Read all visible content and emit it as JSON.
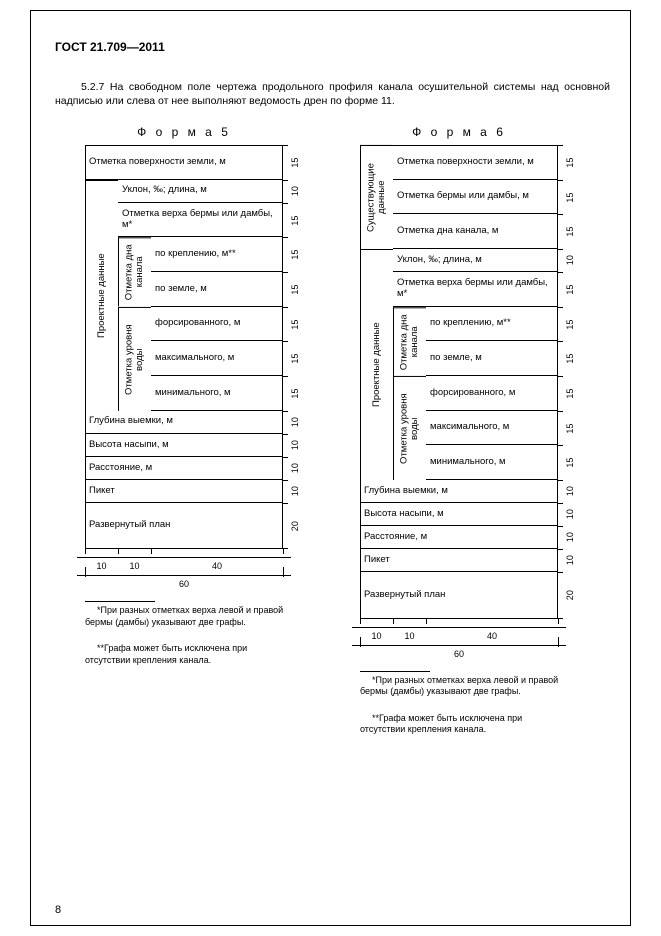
{
  "header": "ГОСТ 21.709—2011",
  "paragraph": "5.2.7 На свободном поле чертежа продольного профиля канала осушительной системы над основной надписью или слева от нее выполняют ведомость дрен по форме 11.",
  "page_number": "8",
  "form5": {
    "title": "Ф о р м а 5",
    "rows": [
      {
        "label": "Отметка поверхности земли, м",
        "h": 15,
        "cols": "full"
      },
      {
        "label": "Уклон, ‰; длина, м",
        "h": 10,
        "cols": "group1"
      },
      {
        "label": "Отметка верха бермы или дамбы, м*",
        "h": 15,
        "cols": "group1"
      },
      {
        "label": "по креплению, м**",
        "h": 15,
        "cols": "group2"
      },
      {
        "label": "по земле, м",
        "h": 15,
        "cols": "group2"
      },
      {
        "label": "форсированного, м",
        "h": 15,
        "cols": "group3"
      },
      {
        "label": "максимального, м",
        "h": 15,
        "cols": "group3"
      },
      {
        "label": "минимального, м",
        "h": 15,
        "cols": "group3"
      },
      {
        "label": "Глубина выемки, м",
        "h": 10,
        "cols": "full"
      },
      {
        "label": "Высота насыпи, м",
        "h": 10,
        "cols": "full"
      },
      {
        "label": "Расстояние, м",
        "h": 10,
        "cols": "full"
      },
      {
        "label": "Пикет",
        "h": 10,
        "cols": "full"
      },
      {
        "label": "Развернутый план",
        "h": 20,
        "cols": "full"
      }
    ],
    "group_outer": "Проектные данные",
    "group2": "Отметка дна канала",
    "group3": "Отметка уровня воды",
    "bottom_dims": {
      "a": "10",
      "b": "10",
      "c": "40",
      "total": "60"
    },
    "footnote1": "*При разных отметках верха левой и правой бермы (дамбы) указывают две графы.",
    "footnote2": "**Графа может быть исключена при отсутствии крепления канала."
  },
  "form6": {
    "title": "Ф о р м а 6",
    "rows": [
      {
        "label": "Отметка поверхности земли, м",
        "h": 15,
        "cols": "groupE"
      },
      {
        "label": "Отметка бермы или дамбы, м",
        "h": 15,
        "cols": "groupE"
      },
      {
        "label": "Отметка дна канала, м",
        "h": 15,
        "cols": "groupE"
      },
      {
        "label": "Уклон, ‰; длина, м",
        "h": 10,
        "cols": "group1"
      },
      {
        "label": "Отметка верха бермы или дамбы, м*",
        "h": 15,
        "cols": "group1"
      },
      {
        "label": "по креплению, м**",
        "h": 15,
        "cols": "group2"
      },
      {
        "label": "по земле, м",
        "h": 15,
        "cols": "group2"
      },
      {
        "label": "форсированного, м",
        "h": 15,
        "cols": "group3"
      },
      {
        "label": "максимального, м",
        "h": 15,
        "cols": "group3"
      },
      {
        "label": "минимального, м",
        "h": 15,
        "cols": "group3"
      },
      {
        "label": "Глубина выемки, м",
        "h": 10,
        "cols": "full"
      },
      {
        "label": "Высота насыпи, м",
        "h": 10,
        "cols": "full"
      },
      {
        "label": "Расстояние, м",
        "h": 10,
        "cols": "full"
      },
      {
        "label": "Пикет",
        "h": 10,
        "cols": "full"
      },
      {
        "label": "Развернутый план",
        "h": 20,
        "cols": "full"
      }
    ],
    "groupE": "Существующие данные",
    "group_outer": "Проектные данные",
    "group2": "Отметка дна канала",
    "group3": "Отметка уровня воды",
    "bottom_dims": {
      "a": "10",
      "b": "10",
      "c": "40",
      "total": "60"
    },
    "footnote1": "*При разных отметках верха левой и правой бермы (дамбы) указывают две графы.",
    "footnote2": "**Графа может быть исключена при отсутствии крепления канала."
  },
  "layout": {
    "scale": 2.0,
    "col_outer": 20,
    "col_inner": 20,
    "col_label": 80,
    "total_width": 120
  }
}
